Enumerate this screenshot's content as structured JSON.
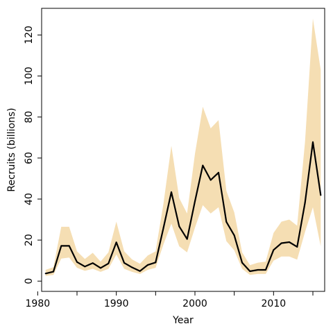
{
  "chart_data": {
    "type": "line",
    "title": "",
    "xlabel": "Year",
    "ylabel": "Recruits (billions)",
    "xlim": [
      1980.5,
      2016.5
    ],
    "ylim": [
      -5,
      133
    ],
    "x_ticks": [
      1980,
      1985,
      1990,
      1995,
      2000,
      2005,
      2010,
      2015
    ],
    "x_tick_labels": [
      "1980",
      "",
      "1990",
      "",
      "2000",
      "",
      "2010",
      ""
    ],
    "y_ticks": [
      0,
      20,
      40,
      60,
      80,
      100,
      120
    ],
    "y_tick_labels": [
      "0",
      "20",
      "40",
      "60",
      "80",
      "100",
      "120"
    ],
    "grid": false,
    "colors": {
      "band": "#f5deb3",
      "line": "#000000"
    },
    "x": [
      1981,
      1982,
      1983,
      1984,
      1985,
      1986,
      1987,
      1988,
      1989,
      1990,
      1991,
      1992,
      1993,
      1994,
      1995,
      1996,
      1997,
      1998,
      1999,
      2000,
      2001,
      2002,
      2003,
      2004,
      2005,
      2006,
      2007,
      2008,
      2009,
      2010,
      2011,
      2012,
      2013,
      2014,
      2015,
      2016
    ],
    "series": [
      {
        "values": [
          3.7,
          4.6,
          17.2,
          17.2,
          9.3,
          7.1,
          8.8,
          6.4,
          8.6,
          18.9,
          8.9,
          6.7,
          4.9,
          7.9,
          9.1,
          26.1,
          43.4,
          26.7,
          20.5,
          38.9,
          56.4,
          49.3,
          52.9,
          28.9,
          22.3,
          9.0,
          4.8,
          5.5,
          5.5,
          15.2,
          18.5,
          19.0,
          16.7,
          38.3,
          67.8,
          41.9
        ]
      }
    ],
    "band_lower": [
      2.5,
      3.0,
      11.0,
      11.5,
      6.5,
      5.0,
      6.0,
      4.5,
      6.0,
      13.0,
      6.0,
      4.5,
      3.5,
      5.5,
      6.5,
      18.0,
      28.0,
      17.0,
      14.0,
      26.0,
      37.0,
      33.0,
      36.0,
      19.5,
      15.0,
      6.0,
      3.0,
      3.5,
      3.5,
      10.0,
      12.0,
      12.0,
      10.5,
      24.0,
      36.0,
      17.0
    ],
    "band_upper": [
      5.5,
      6.8,
      26.5,
      26.5,
      14.5,
      10.8,
      13.8,
      9.5,
      14.0,
      29.0,
      14.5,
      10.6,
      8.5,
      12.5,
      14.5,
      38.0,
      66.0,
      40.5,
      33.0,
      62.0,
      85.0,
      74.5,
      78.5,
      44.0,
      33.5,
      14.0,
      7.8,
      9.0,
      9.5,
      23.5,
      29.0,
      30.0,
      27.0,
      68.0,
      128.0,
      103.0
    ]
  }
}
